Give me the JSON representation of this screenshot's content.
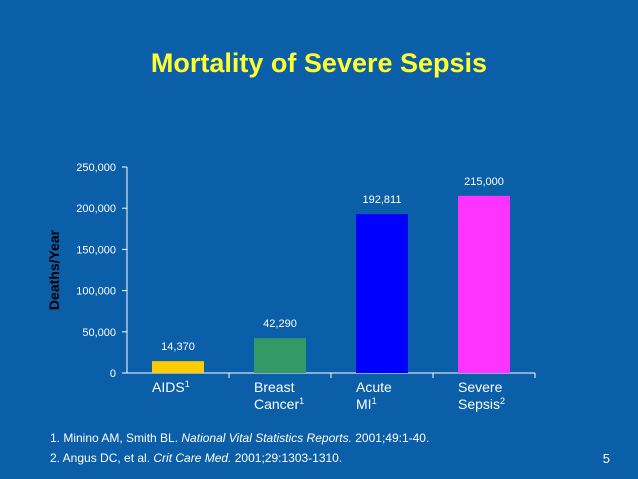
{
  "slide": {
    "title": "Mortality of Severe Sepsis",
    "page_number": "5",
    "references": [
      {
        "prefix": "1. Minino AM, Smith BL. ",
        "journal": "National Vital Statistics Reports.",
        "suffix": " 2001;49:1-40."
      },
      {
        "prefix": "2. Angus DC, et al. ",
        "journal": "Crit Care Med.",
        "suffix": " 2001;29:1303-1310."
      }
    ]
  },
  "chart_data": {
    "type": "bar",
    "title": "Mortality of Severe Sepsis",
    "ylabel": "Deaths/Year",
    "xlabel": "",
    "ylim": [
      0,
      250000
    ],
    "yticks": [
      0,
      50000,
      100000,
      150000,
      200000,
      250000
    ],
    "ytick_labels": [
      "0",
      "50,000",
      "100,000",
      "150,000",
      "200,000",
      "250,000"
    ],
    "categories": [
      {
        "line1": "AIDS",
        "line2": "",
        "sup": "1"
      },
      {
        "line1": "Breast",
        "line2": "Cancer",
        "sup": "1"
      },
      {
        "line1": "Acute",
        "line2": "MI",
        "sup": "1"
      },
      {
        "line1": "Severe",
        "line2": "Sepsis",
        "sup": "2"
      }
    ],
    "values": [
      14370,
      42290,
      192811,
      215000
    ],
    "value_labels": [
      "14,370",
      "42,290",
      "192,811",
      "215,000"
    ],
    "colors": [
      "#ffcc00",
      "#339966",
      "#0000ff",
      "#ff33ff"
    ],
    "grid": false
  }
}
